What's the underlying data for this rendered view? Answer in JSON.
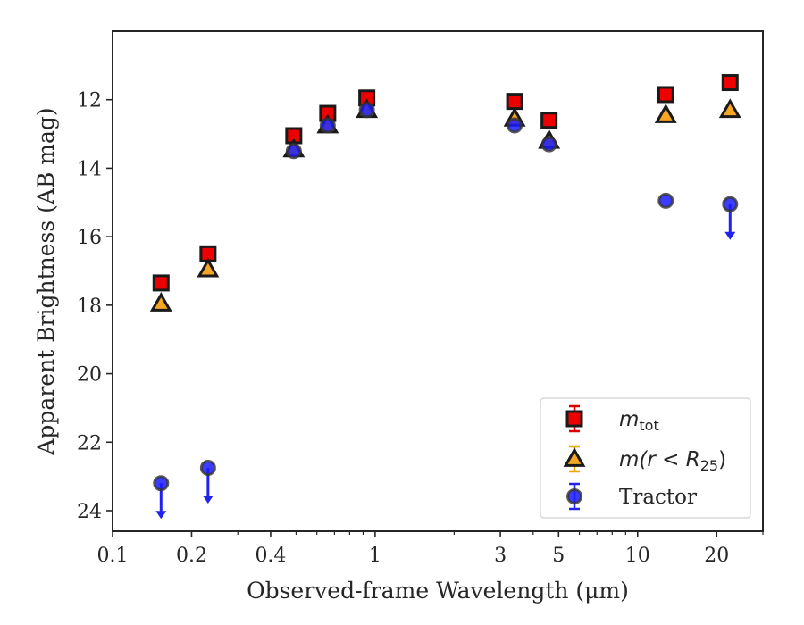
{
  "chart_data": {
    "type": "scatter",
    "title": "",
    "xlabel": "Observed-frame Wavelength (μm)",
    "ylabel": "Apparent Brightness (AB mag)",
    "xscale": "log",
    "xlim": [
      0.1,
      30
    ],
    "ylim": [
      24.6,
      10.0
    ],
    "y_inverted": true,
    "x_ticks": [
      {
        "value": 0.1,
        "label": "0.1"
      },
      {
        "value": 0.2,
        "label": "0.2"
      },
      {
        "value": 0.4,
        "label": "0.4"
      },
      {
        "value": 1,
        "label": "1"
      },
      {
        "value": 3,
        "label": "3"
      },
      {
        "value": 5,
        "label": "5"
      },
      {
        "value": 10,
        "label": "10"
      },
      {
        "value": 20,
        "label": "20"
      }
    ],
    "y_ticks": [
      {
        "value": 12,
        "label": "12"
      },
      {
        "value": 14,
        "label": "14"
      },
      {
        "value": 16,
        "label": "16"
      },
      {
        "value": 18,
        "label": "18"
      },
      {
        "value": 20,
        "label": "20"
      },
      {
        "value": 22,
        "label": "22"
      },
      {
        "value": 24,
        "label": "24"
      }
    ],
    "legend_position": "bottom-right",
    "series": [
      {
        "name": "m_tot",
        "legend_main": "m",
        "legend_sub": "tot",
        "marker": "square",
        "face_color": "#ee0000",
        "edge_color": "#1a1a1a",
        "errbar_color": "#dd0000",
        "points": [
          {
            "x": 0.153,
            "y": 17.35
          },
          {
            "x": 0.231,
            "y": 16.5
          },
          {
            "x": 0.49,
            "y": 13.05
          },
          {
            "x": 0.66,
            "y": 12.4
          },
          {
            "x": 0.93,
            "y": 11.95
          },
          {
            "x": 3.4,
            "y": 12.05
          },
          {
            "x": 4.6,
            "y": 12.6
          },
          {
            "x": 12.8,
            "y": 11.85
          },
          {
            "x": 22.5,
            "y": 11.5
          }
        ]
      },
      {
        "name": "m(r < R25)",
        "legend_main": "m(r < R",
        "legend_sub": "25",
        "legend_tail": ")",
        "marker": "triangle",
        "face_color": "#f5a623",
        "edge_color": "#1a1a1a",
        "errbar_color": "#f0a500",
        "points": [
          {
            "x": 0.153,
            "y": 17.95
          },
          {
            "x": 0.231,
            "y": 16.95
          },
          {
            "x": 0.49,
            "y": 13.45
          },
          {
            "x": 0.66,
            "y": 12.75
          },
          {
            "x": 0.93,
            "y": 12.3
          },
          {
            "x": 3.4,
            "y": 12.55
          },
          {
            "x": 4.6,
            "y": 13.2
          },
          {
            "x": 12.8,
            "y": 12.45
          },
          {
            "x": 22.5,
            "y": 12.3
          }
        ]
      },
      {
        "name": "Tractor",
        "legend_main": "Tractor",
        "marker": "circle",
        "face_color": "#1a1aff",
        "edge_color": "#333333",
        "errbar_color": "#2222ee",
        "points": [
          {
            "x": 0.153,
            "y": 23.2,
            "upper_limit": true
          },
          {
            "x": 0.231,
            "y": 22.75,
            "upper_limit": true
          },
          {
            "x": 0.49,
            "y": 13.5
          },
          {
            "x": 0.66,
            "y": 12.75
          },
          {
            "x": 0.93,
            "y": 12.3
          },
          {
            "x": 3.4,
            "y": 12.75
          },
          {
            "x": 4.6,
            "y": 13.3
          },
          {
            "x": 12.8,
            "y": 14.95
          },
          {
            "x": 22.5,
            "y": 15.05,
            "upper_limit": true
          }
        ]
      }
    ]
  }
}
